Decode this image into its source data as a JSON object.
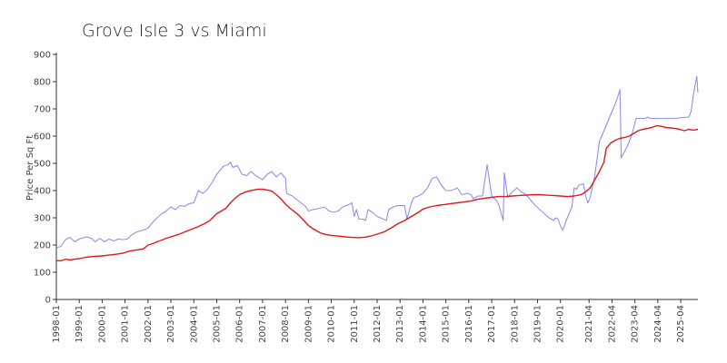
{
  "chart_data": {
    "type": "line",
    "title": "Grove Isle 3 vs Miami",
    "xlabel": "",
    "ylabel": "Price Per Sq Ft",
    "ylim": [
      0,
      900
    ],
    "yticks": [
      0,
      100,
      200,
      300,
      400,
      500,
      600,
      700,
      800,
      900
    ],
    "xlim": [
      1998.0,
      2026.0
    ],
    "xticks": [
      {
        "label": "1998-01",
        "x": 1998.0
      },
      {
        "label": "1999-01",
        "x": 1999.0
      },
      {
        "label": "2000-01",
        "x": 2000.0
      },
      {
        "label": "2001-01",
        "x": 2001.0
      },
      {
        "label": "2002-01",
        "x": 2002.0
      },
      {
        "label": "2003-01",
        "x": 2003.0
      },
      {
        "label": "2004-01",
        "x": 2004.0
      },
      {
        "label": "2005-01",
        "x": 2005.0
      },
      {
        "label": "2006-01",
        "x": 2006.0
      },
      {
        "label": "2007-01",
        "x": 2007.0
      },
      {
        "label": "2008-01",
        "x": 2008.0
      },
      {
        "label": "2009-01",
        "x": 2009.0
      },
      {
        "label": "2010-01",
        "x": 2010.0
      },
      {
        "label": "2011-01",
        "x": 2011.0
      },
      {
        "label": "2012-01",
        "x": 2012.0
      },
      {
        "label": "2013-01",
        "x": 2013.0
      },
      {
        "label": "2014-01",
        "x": 2014.0
      },
      {
        "label": "2015-01",
        "x": 2015.0
      },
      {
        "label": "2016-01",
        "x": 2016.0
      },
      {
        "label": "2017-01",
        "x": 2017.0
      },
      {
        "label": "2018-01",
        "x": 2018.0
      },
      {
        "label": "2019-01",
        "x": 2019.0
      },
      {
        "label": "2020-01",
        "x": 2020.0
      },
      {
        "label": "2021-04",
        "x": 2021.25
      },
      {
        "label": "2022-04",
        "x": 2022.25
      },
      {
        "label": "2023-04",
        "x": 2023.25
      },
      {
        "label": "2024-04",
        "x": 2024.25
      },
      {
        "label": "2025-04",
        "x": 2025.25
      }
    ],
    "grid": false,
    "legend": "none",
    "series": [
      {
        "color": "#8f8ff0",
        "points": [
          [
            1998.0,
            190
          ],
          [
            1998.2,
            195
          ],
          [
            1998.4,
            220
          ],
          [
            1998.6,
            228
          ],
          [
            1998.8,
            212
          ],
          [
            1999.0,
            222
          ],
          [
            1999.3,
            230
          ],
          [
            1999.5,
            226
          ],
          [
            1999.7,
            212
          ],
          [
            1999.9,
            225
          ],
          [
            2000.1,
            212
          ],
          [
            2000.3,
            222
          ],
          [
            2000.5,
            215
          ],
          [
            2000.7,
            222
          ],
          [
            2000.9,
            220
          ],
          [
            2001.1,
            222
          ],
          [
            2001.3,
            238
          ],
          [
            2001.5,
            248
          ],
          [
            2001.8,
            255
          ],
          [
            2002.0,
            262
          ],
          [
            2002.2,
            283
          ],
          [
            2002.4,
            300
          ],
          [
            2002.6,
            315
          ],
          [
            2002.8,
            325
          ],
          [
            2003.0,
            340
          ],
          [
            2003.2,
            330
          ],
          [
            2003.4,
            345
          ],
          [
            2003.6,
            342
          ],
          [
            2003.8,
            352
          ],
          [
            2004.0,
            355
          ],
          [
            2004.2,
            400
          ],
          [
            2004.4,
            390
          ],
          [
            2004.6,
            405
          ],
          [
            2004.8,
            430
          ],
          [
            2005.0,
            460
          ],
          [
            2005.3,
            490
          ],
          [
            2005.5,
            495
          ],
          [
            2005.6,
            505
          ],
          [
            2005.7,
            485
          ],
          [
            2005.9,
            492
          ],
          [
            2006.1,
            460
          ],
          [
            2006.3,
            455
          ],
          [
            2006.5,
            470
          ],
          [
            2006.7,
            455
          ],
          [
            2007.0,
            440
          ],
          [
            2007.2,
            460
          ],
          [
            2007.4,
            470
          ],
          [
            2007.6,
            450
          ],
          [
            2007.8,
            465
          ],
          [
            2008.0,
            445
          ],
          [
            2008.05,
            390
          ],
          [
            2008.3,
            380
          ],
          [
            2008.6,
            360
          ],
          [
            2008.9,
            340
          ],
          [
            2009.0,
            325
          ],
          [
            2009.2,
            330
          ],
          [
            2009.5,
            335
          ],
          [
            2009.7,
            340
          ],
          [
            2009.9,
            325
          ],
          [
            2010.1,
            320
          ],
          [
            2010.3,
            325
          ],
          [
            2010.5,
            340
          ],
          [
            2010.8,
            350
          ],
          [
            2010.9,
            355
          ],
          [
            2011.0,
            305
          ],
          [
            2011.1,
            330
          ],
          [
            2011.2,
            295
          ],
          [
            2011.4,
            295
          ],
          [
            2011.5,
            290
          ],
          [
            2011.6,
            330
          ],
          [
            2011.8,
            320
          ],
          [
            2012.0,
            305
          ],
          [
            2012.2,
            298
          ],
          [
            2012.4,
            290
          ],
          [
            2012.5,
            330
          ],
          [
            2012.7,
            340
          ],
          [
            2012.9,
            345
          ],
          [
            2013.1,
            345
          ],
          [
            2013.2,
            345
          ],
          [
            2013.3,
            295
          ],
          [
            2013.5,
            355
          ],
          [
            2013.6,
            375
          ],
          [
            2013.8,
            380
          ],
          [
            2014.0,
            390
          ],
          [
            2014.2,
            410
          ],
          [
            2014.4,
            445
          ],
          [
            2014.6,
            450
          ],
          [
            2014.8,
            420
          ],
          [
            2015.0,
            400
          ],
          [
            2015.2,
            400
          ],
          [
            2015.4,
            405
          ],
          [
            2015.5,
            410
          ],
          [
            2015.7,
            385
          ],
          [
            2015.9,
            390
          ],
          [
            2016.1,
            385
          ],
          [
            2016.2,
            370
          ],
          [
            2016.4,
            380
          ],
          [
            2016.6,
            380
          ],
          [
            2016.8,
            495
          ],
          [
            2017.0,
            380
          ],
          [
            2017.2,
            365
          ],
          [
            2017.3,
            350
          ],
          [
            2017.5,
            290
          ],
          [
            2017.55,
            465
          ],
          [
            2017.7,
            375
          ],
          [
            2017.9,
            395
          ],
          [
            2018.1,
            410
          ],
          [
            2018.3,
            395
          ],
          [
            2018.5,
            385
          ],
          [
            2018.7,
            365
          ],
          [
            2018.9,
            345
          ],
          [
            2019.1,
            330
          ],
          [
            2019.3,
            315
          ],
          [
            2019.5,
            300
          ],
          [
            2019.7,
            290
          ],
          [
            2019.8,
            300
          ],
          [
            2019.9,
            295
          ],
          [
            2020.0,
            270
          ],
          [
            2020.1,
            255
          ],
          [
            2020.3,
            300
          ],
          [
            2020.5,
            340
          ],
          [
            2020.6,
            410
          ],
          [
            2020.7,
            405
          ],
          [
            2020.8,
            420
          ],
          [
            2021.0,
            425
          ],
          [
            2021.1,
            380
          ],
          [
            2021.2,
            355
          ],
          [
            2021.3,
            375
          ],
          [
            2021.5,
            455
          ],
          [
            2021.7,
            580
          ],
          [
            2022.0,
            640
          ],
          [
            2022.2,
            680
          ],
          [
            2022.4,
            720
          ],
          [
            2022.6,
            770
          ],
          [
            2022.65,
            520
          ],
          [
            2022.9,
            560
          ],
          [
            2023.1,
            600
          ],
          [
            2023.3,
            665
          ],
          [
            2023.5,
            665
          ],
          [
            2023.7,
            665
          ],
          [
            2023.8,
            670
          ],
          [
            2023.9,
            665
          ],
          [
            2024.5,
            665
          ],
          [
            2025.0,
            665
          ],
          [
            2025.3,
            668
          ],
          [
            2025.6,
            670
          ],
          [
            2025.7,
            690
          ],
          [
            2025.8,
            750
          ],
          [
            2025.95,
            820
          ],
          [
            2026.0,
            760
          ]
        ]
      },
      {
        "color": "#e01818",
        "points": [
          [
            1998.0,
            143
          ],
          [
            1998.2,
            142
          ],
          [
            1998.4,
            148
          ],
          [
            1998.6,
            145
          ],
          [
            1998.8,
            148
          ],
          [
            1999.0,
            150
          ],
          [
            1999.3,
            155
          ],
          [
            1999.6,
            158
          ],
          [
            2000.0,
            160
          ],
          [
            2000.3,
            163
          ],
          [
            2000.6,
            166
          ],
          [
            2000.9,
            170
          ],
          [
            2001.2,
            178
          ],
          [
            2001.5,
            182
          ],
          [
            2001.8,
            186
          ],
          [
            2002.0,
            200
          ],
          [
            2002.2,
            205
          ],
          [
            2002.4,
            212
          ],
          [
            2002.6,
            218
          ],
          [
            2002.8,
            225
          ],
          [
            2003.0,
            230
          ],
          [
            2003.3,
            238
          ],
          [
            2003.6,
            248
          ],
          [
            2003.9,
            258
          ],
          [
            2004.2,
            268
          ],
          [
            2004.5,
            280
          ],
          [
            2004.7,
            290
          ],
          [
            2005.0,
            315
          ],
          [
            2005.2,
            325
          ],
          [
            2005.4,
            335
          ],
          [
            2005.6,
            355
          ],
          [
            2005.8,
            372
          ],
          [
            2006.0,
            385
          ],
          [
            2006.2,
            393
          ],
          [
            2006.4,
            398
          ],
          [
            2006.6,
            402
          ],
          [
            2006.8,
            405
          ],
          [
            2007.0,
            405
          ],
          [
            2007.2,
            402
          ],
          [
            2007.4,
            398
          ],
          [
            2007.6,
            385
          ],
          [
            2007.8,
            370
          ],
          [
            2008.0,
            350
          ],
          [
            2008.2,
            335
          ],
          [
            2008.4,
            322
          ],
          [
            2008.6,
            308
          ],
          [
            2008.8,
            290
          ],
          [
            2009.0,
            272
          ],
          [
            2009.2,
            260
          ],
          [
            2009.4,
            250
          ],
          [
            2009.6,
            242
          ],
          [
            2009.8,
            238
          ],
          [
            2010.0,
            235
          ],
          [
            2010.3,
            233
          ],
          [
            2010.6,
            230
          ],
          [
            2010.9,
            228
          ],
          [
            2011.2,
            227
          ],
          [
            2011.5,
            229
          ],
          [
            2011.8,
            235
          ],
          [
            2012.0,
            240
          ],
          [
            2012.3,
            248
          ],
          [
            2012.6,
            262
          ],
          [
            2012.9,
            278
          ],
          [
            2013.2,
            290
          ],
          [
            2013.5,
            305
          ],
          [
            2013.8,
            320
          ],
          [
            2014.0,
            332
          ],
          [
            2014.3,
            340
          ],
          [
            2014.6,
            345
          ],
          [
            2014.9,
            348
          ],
          [
            2015.2,
            352
          ],
          [
            2015.5,
            355
          ],
          [
            2015.8,
            358
          ],
          [
            2016.1,
            362
          ],
          [
            2016.4,
            368
          ],
          [
            2016.7,
            372
          ],
          [
            2017.0,
            375
          ],
          [
            2017.3,
            378
          ],
          [
            2017.6,
            378
          ],
          [
            2017.9,
            380
          ],
          [
            2018.2,
            382
          ],
          [
            2018.5,
            383
          ],
          [
            2018.8,
            385
          ],
          [
            2019.1,
            385
          ],
          [
            2019.4,
            383
          ],
          [
            2019.7,
            382
          ],
          [
            2020.0,
            380
          ],
          [
            2020.3,
            378
          ],
          [
            2020.6,
            380
          ],
          [
            2020.9,
            385
          ],
          [
            2021.1,
            395
          ],
          [
            2021.3,
            410
          ],
          [
            2021.5,
            440
          ],
          [
            2021.7,
            470
          ],
          [
            2021.9,
            505
          ],
          [
            2022.0,
            555
          ],
          [
            2022.2,
            575
          ],
          [
            2022.4,
            585
          ],
          [
            2022.6,
            592
          ],
          [
            2022.8,
            595
          ],
          [
            2023.0,
            600
          ],
          [
            2023.2,
            610
          ],
          [
            2023.4,
            620
          ],
          [
            2023.6,
            625
          ],
          [
            2023.8,
            628
          ],
          [
            2024.0,
            632
          ],
          [
            2024.2,
            638
          ],
          [
            2024.4,
            636
          ],
          [
            2024.6,
            632
          ],
          [
            2024.8,
            630
          ],
          [
            2025.0,
            628
          ],
          [
            2025.2,
            625
          ],
          [
            2025.4,
            620
          ],
          [
            2025.6,
            625
          ],
          [
            2025.8,
            622
          ],
          [
            2026.0,
            625
          ]
        ]
      }
    ]
  }
}
